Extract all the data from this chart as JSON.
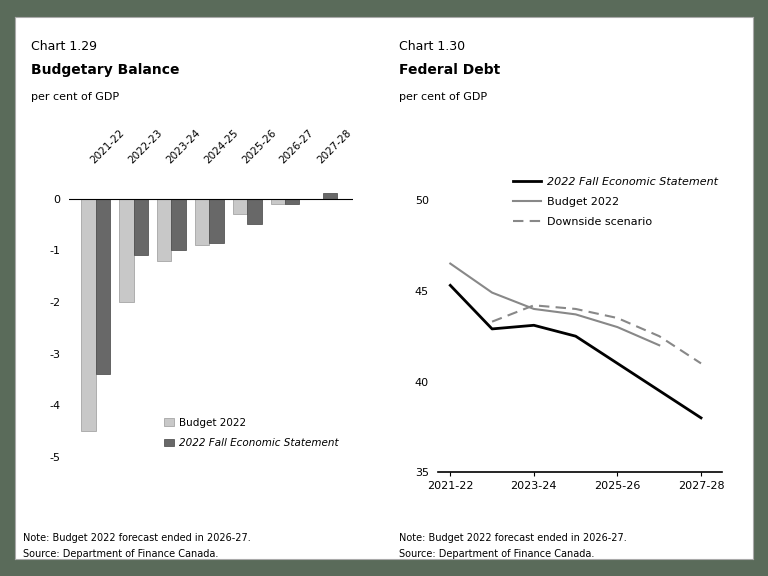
{
  "outer_bg": "#5a6b5a",
  "panel_bg": "#ffffff",
  "panel_border": "#aaaaaa",
  "chart1": {
    "title_line1": "Chart 1.29",
    "title_line2": "Budgetary Balance",
    "ylabel": "per cent of GDP",
    "categories": [
      "2021-22",
      "2022-23",
      "2023-24",
      "2024-25",
      "2025-26",
      "2026-27",
      "2027-28"
    ],
    "budget2022_values": [
      -4.5,
      -2.0,
      -1.2,
      -0.9,
      -0.3,
      -0.1
    ],
    "fes2022_values": [
      -3.4,
      -1.1,
      -1.0,
      -0.85,
      -0.5,
      -0.1,
      0.1
    ],
    "budget2022_color": "#c8c8c8",
    "fes2022_color": "#686868",
    "budget2022_edge": "#999999",
    "fes2022_edge": "#444444",
    "ylim_min": -5.3,
    "ylim_max": 0.5,
    "yticks": [
      0,
      -1,
      -2,
      -3,
      -4,
      -5
    ],
    "note": "Note: Budget 2022 forecast ended in 2026-27.",
    "source": "Source: Department of Finance Canada.",
    "legend_budget": "Budget 2022",
    "legend_fes": "2022 Fall Economic Statement"
  },
  "chart2": {
    "title_line1": "Chart 1.30",
    "title_line2": "Federal Debt",
    "ylabel": "per cent of GDP",
    "x_tick_positions": [
      0,
      2,
      4,
      6
    ],
    "x_tick_labels": [
      "2021-22",
      "2023-24",
      "2025-26",
      "2027-28"
    ],
    "fes2022_x": [
      0,
      1,
      2,
      3,
      4,
      5,
      6
    ],
    "fes2022_y": [
      45.3,
      42.9,
      43.1,
      42.5,
      41.0,
      39.5,
      38.0
    ],
    "budget2022_x": [
      0,
      1,
      2,
      3,
      4,
      5
    ],
    "budget2022_y": [
      46.5,
      44.9,
      44.0,
      43.7,
      43.0,
      42.0
    ],
    "downside_x": [
      1,
      2,
      3,
      4,
      5,
      6
    ],
    "downside_y": [
      43.3,
      44.2,
      44.0,
      43.5,
      42.5,
      41.0
    ],
    "fes2022_color": "#000000",
    "budget2022_color": "#888888",
    "downside_color": "#888888",
    "ylim_min": 35,
    "ylim_max": 51.5,
    "yticks": [
      35,
      40,
      45,
      50
    ],
    "note": "Note: Budget 2022 forecast ended in 2026-27.",
    "source": "Source: Department of Finance Canada.",
    "legend_fes": "2022 Fall Economic Statement",
    "legend_budget": "Budget 2022",
    "legend_downside": "Downside scenario"
  }
}
